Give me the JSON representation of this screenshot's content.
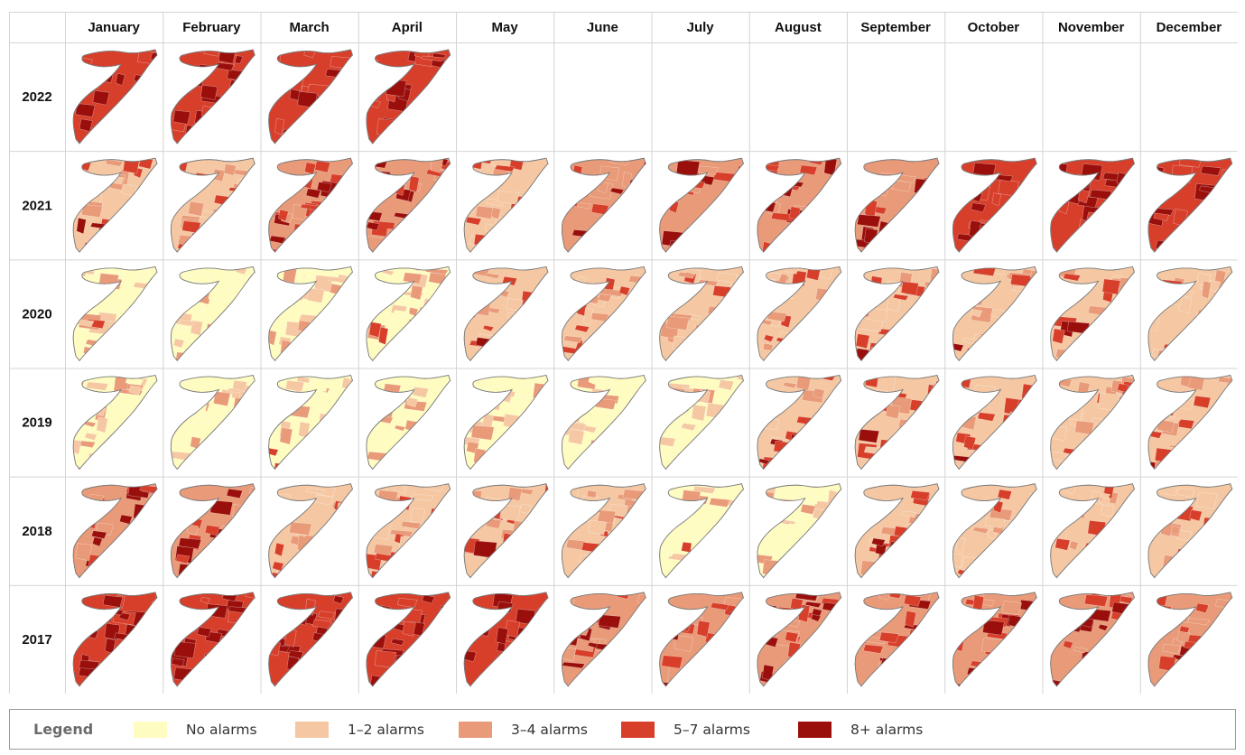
{
  "months": [
    "January",
    "February",
    "March",
    "April",
    "May",
    "June",
    "July",
    "August",
    "September",
    "October",
    "November",
    "December"
  ],
  "years": [
    {
      "year": "2022",
      "levels": [
        4,
        4,
        4,
        4,
        null,
        null,
        null,
        null,
        null,
        null,
        null,
        null
      ]
    },
    {
      "year": "2021",
      "levels": [
        2,
        2,
        3,
        3,
        2,
        3,
        3,
        3,
        3,
        4,
        4,
        4
      ]
    },
    {
      "year": "2020",
      "levels": [
        1,
        1,
        1,
        1,
        2,
        2,
        2,
        2,
        2,
        2,
        2,
        2
      ]
    },
    {
      "year": "2019",
      "levels": [
        1,
        1,
        1,
        1,
        1,
        1,
        1,
        2,
        2,
        2,
        2,
        2
      ]
    },
    {
      "year": "2018",
      "levels": [
        3,
        3,
        2,
        2,
        2,
        2,
        1,
        1,
        2,
        2,
        2,
        2
      ]
    },
    {
      "year": "2017",
      "levels": [
        4,
        4,
        4,
        4,
        4,
        3,
        3,
        3,
        3,
        3,
        3,
        3
      ]
    }
  ],
  "legend": {
    "title": "Legend",
    "items": [
      {
        "label": "No alarms",
        "color": "#fefcc0"
      },
      {
        "label": "1–2 alarms",
        "color": "#f5c8a3"
      },
      {
        "label": "3–4 alarms",
        "color": "#e99a78"
      },
      {
        "label": "5–7 alarms",
        "color": "#d73f2b"
      },
      {
        "label": "8+ alarms",
        "color": "#9a0f0c"
      }
    ]
  }
}
